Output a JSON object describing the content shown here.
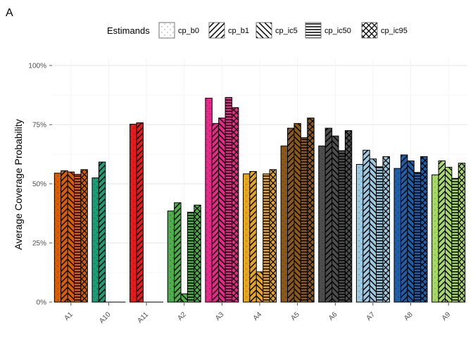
{
  "chart_data": {
    "type": "bar",
    "panel_label": "A",
    "ylabel": "Average Coverage Probability",
    "xlabel": "",
    "ylim": [
      0,
      1
    ],
    "yticks": [
      0,
      0.25,
      0.5,
      0.75,
      1.0
    ],
    "ytick_labels": [
      "0%",
      "25%",
      "50%",
      "75%",
      "100%"
    ],
    "grid": true,
    "legend": {
      "title": "Estimands",
      "position": "top"
    },
    "categories": [
      "A1",
      "A10",
      "A11",
      "A2",
      "A3",
      "A4",
      "A5",
      "A6",
      "A7",
      "A8",
      "A9"
    ],
    "category_colors": [
      "#D95F02",
      "#1B9E77",
      "#E41A1C",
      "#4DAF4A",
      "#E7298A",
      "#E6A61D",
      "#8B5A1A",
      "#4D4D4D",
      "#9ECAE1",
      "#1F5FA8",
      "#A6D96A"
    ],
    "series": [
      {
        "name": "cp_b0",
        "pattern": "dots",
        "values": [
          0.545,
          0.525,
          0.752,
          0.385,
          0.862,
          0.542,
          0.66,
          0.66,
          0.582,
          0.565,
          0.538
        ]
      },
      {
        "name": "cp_b1",
        "pattern": "slash",
        "values": [
          0.555,
          0.592,
          0.758,
          0.42,
          0.755,
          0.552,
          0.735,
          0.735,
          0.642,
          0.622,
          0.597
        ]
      },
      {
        "name": "cp_ic5",
        "pattern": "backslash",
        "values": [
          0.55,
          0.0,
          0.0,
          0.035,
          0.778,
          0.128,
          0.755,
          0.702,
          0.605,
          0.597,
          0.57
        ]
      },
      {
        "name": "cp_ic50",
        "pattern": "horizontal",
        "values": [
          0.54,
          0.0,
          0.0,
          0.38,
          0.865,
          0.542,
          0.695,
          0.64,
          0.572,
          0.548,
          0.523
        ]
      },
      {
        "name": "cp_ic95",
        "pattern": "crosshatch",
        "values": [
          0.56,
          0.0,
          0.0,
          0.41,
          0.822,
          0.56,
          0.778,
          0.725,
          0.615,
          0.615,
          0.587
        ]
      }
    ]
  }
}
